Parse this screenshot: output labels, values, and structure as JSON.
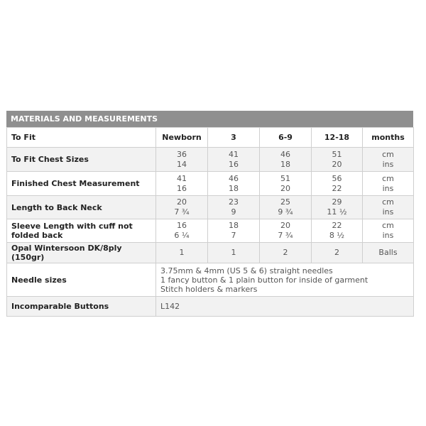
{
  "title": "MATERIALS AND MEASUREMENTS",
  "header": {
    "label": "To Fit",
    "sizes": [
      "Newborn",
      "3",
      "6-9",
      "12-18"
    ],
    "unit": "months"
  },
  "rows": [
    {
      "label": "To Fit Chest Sizes",
      "values": [
        [
          "36",
          "14"
        ],
        [
          "41",
          "16"
        ],
        [
          "46",
          "18"
        ],
        [
          "51",
          "20"
        ]
      ],
      "unit": [
        "cm",
        "ins"
      ]
    },
    {
      "label": "Finished Chest Measurement",
      "values": [
        [
          "41",
          "16"
        ],
        [
          "46",
          "18"
        ],
        [
          "51",
          "20"
        ],
        [
          "56",
          "22"
        ]
      ],
      "unit": [
        "cm",
        "ins"
      ]
    },
    {
      "label": "Length to Back Neck",
      "values": [
        [
          "20",
          "7 ¾"
        ],
        [
          "23",
          "9"
        ],
        [
          "25",
          "9 ¾"
        ],
        [
          "29",
          "11 ½"
        ]
      ],
      "unit": [
        "cm",
        "ins"
      ]
    },
    {
      "label": "Sleeve Length with cuff not folded back",
      "values": [
        [
          "16",
          "6 ¼"
        ],
        [
          "18",
          "7"
        ],
        [
          "20",
          "7 ¾"
        ],
        [
          "22",
          "8 ½"
        ]
      ],
      "unit": [
        "cm",
        "ins"
      ]
    }
  ],
  "yarn": {
    "label": "Opal Wintersoon DK/8ply (150gr)",
    "values": [
      "1",
      "1",
      "2",
      "2"
    ],
    "unit": "Balls"
  },
  "needles": {
    "label": "Needle sizes",
    "lines": [
      "3.75mm & 4mm (US 5 & 6) straight needles",
      "1 fancy button & 1 plain button for inside of garment",
      "Stitch holders & markers"
    ]
  },
  "buttons": {
    "label": "Incomparable Buttons",
    "value": "L142"
  }
}
